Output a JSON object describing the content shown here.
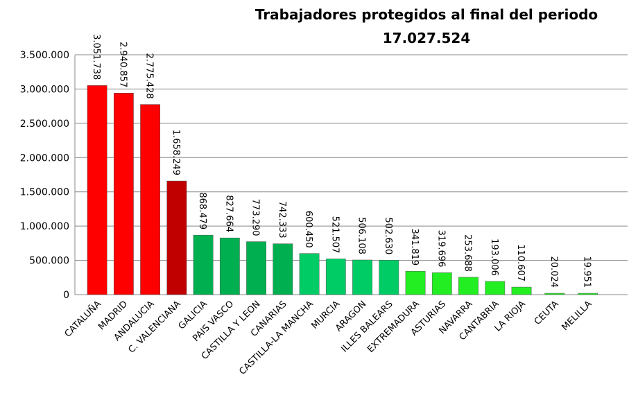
{
  "chart_data": {
    "type": "bar",
    "title": "Trabajadores protegidos al final del periodo",
    "subtitle": "17.027.524",
    "categories": [
      "CATALUÑA",
      "MADRID",
      "ANDALUCIA",
      "C. VALENCIANA",
      "GALICIA",
      "PAIS VASCO",
      "CASTILLA Y LEON",
      "CANARIAS",
      "CASTILLA-LA MANCHA",
      "MURCIA",
      "ARAGON",
      "ILLES BALEARS",
      "EXTREMADURA",
      "ASTURIAS",
      "NAVARRA",
      "CANTABRIA",
      "LA RIOJA",
      "CEUTA",
      "MELILLA"
    ],
    "values": [
      3051738,
      2940857,
      2775428,
      1658249,
      868479,
      827664,
      773290,
      742333,
      600450,
      521507,
      506108,
      502630,
      341819,
      319696,
      253688,
      193006,
      110607,
      20024,
      19951
    ],
    "value_labels": [
      "3.051.738",
      "2.940.857",
      "2.775.428",
      "1.658.249",
      "868.479",
      "827.664",
      "773.290",
      "742.333",
      "600.450",
      "521.507",
      "506.108",
      "502.630",
      "341.819",
      "319.696",
      "253.688",
      "193.006",
      "110.607",
      "20.024",
      "19.951"
    ],
    "colors": [
      "#ff0000",
      "#ff0000",
      "#ff0000",
      "#c00000",
      "#00b050",
      "#00b050",
      "#00b050",
      "#00b050",
      "#00cc66",
      "#00cc66",
      "#00cc66",
      "#00cc66",
      "#22ee22",
      "#22ee22",
      "#22ee22",
      "#22ee22",
      "#22ee22",
      "#22ee22",
      "#22ee22"
    ],
    "ylim": [
      0,
      3500000
    ],
    "yticks": [
      0,
      {
        "value": 500000,
        "label": "500.000"
      },
      {
        "value": 1000000,
        "label": "1.000.000"
      },
      {
        "value": 1500000,
        "label": "1.500.000"
      },
      {
        "value": 2000000,
        "label": "2.000.000"
      },
      {
        "value": 2500000,
        "label": "2.500.000"
      },
      {
        "value": 3000000,
        "label": "3.000.000"
      },
      {
        "value": 3500000,
        "label": "3.500.000"
      }
    ],
    "grid": true
  }
}
